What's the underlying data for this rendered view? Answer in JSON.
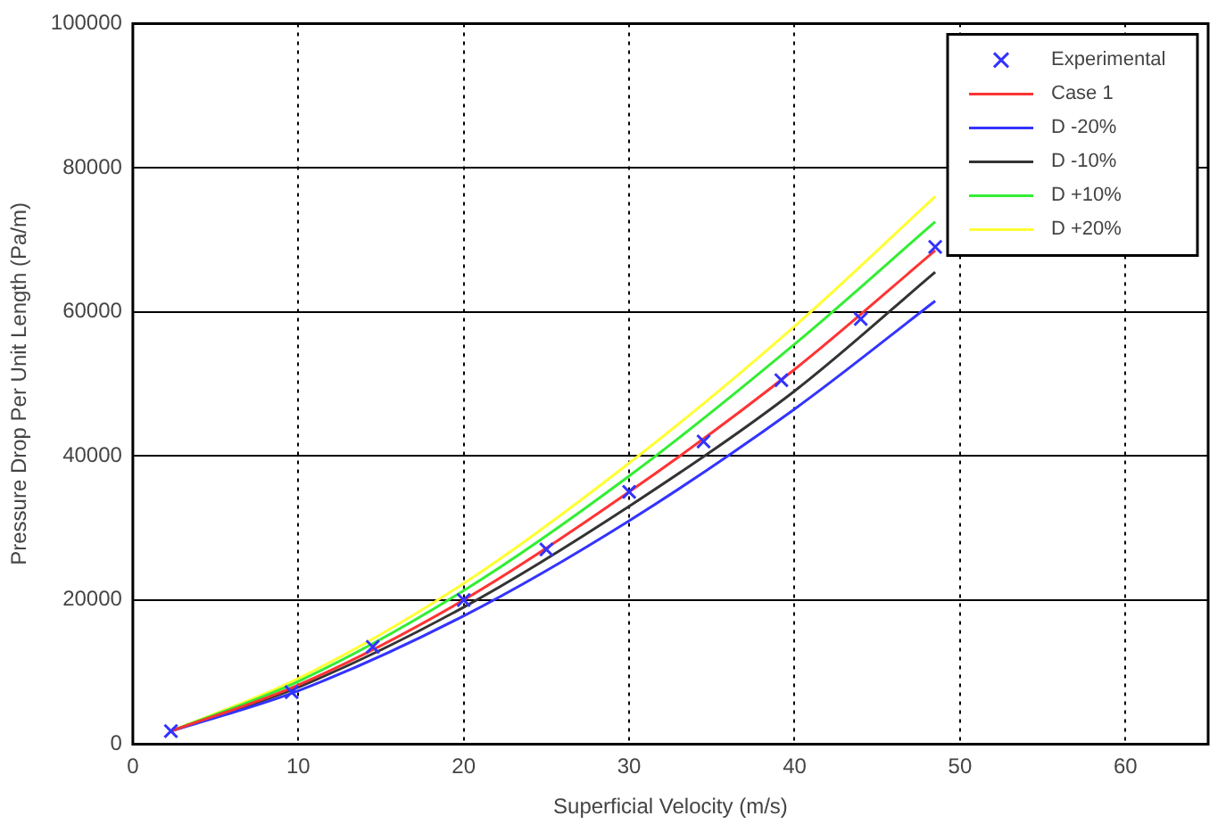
{
  "chart_data": {
    "type": "line",
    "xlabel": "Superficial Velocity (m/s)",
    "ylabel": "Pressure Drop Per Unit Length (Pa/m)",
    "xlim": [
      0,
      65
    ],
    "xticks": [
      0,
      10,
      20,
      30,
      40,
      50,
      60
    ],
    "ylim": [
      0,
      100000
    ],
    "yticks": [
      0,
      20000,
      40000,
      60000,
      80000,
      100000
    ],
    "grid": true,
    "legend": "top right",
    "line_style": "solid",
    "series": [
      {
        "name": "Experimental",
        "type": "scatter",
        "marker": "cross",
        "color": "#3333ff",
        "x": [
          2.3,
          9.6,
          14.5,
          20,
          25,
          30,
          34.5,
          39.2,
          44,
          48.5
        ],
        "values": [
          1800,
          7200,
          13500,
          20000,
          27000,
          35000,
          42000,
          50500,
          59000,
          69000
        ]
      },
      {
        "name": "Case 1",
        "color": "#ff3333",
        "marker": "none",
        "x": [
          2.3,
          10,
          20,
          30,
          40,
          48.5
        ],
        "values": [
          1800,
          8200,
          20000,
          35000,
          52000,
          68500
        ]
      },
      {
        "name": "D -20%",
        "color": "#3333ff",
        "marker": "none",
        "x": [
          2.3,
          10,
          20,
          30,
          40,
          48.5
        ],
        "values": [
          1800,
          7400,
          17800,
          31000,
          46500,
          61500
        ]
      },
      {
        "name": "D -10%",
        "color": "#333333",
        "marker": "none",
        "x": [
          2.3,
          10,
          20,
          30,
          40,
          48.5
        ],
        "values": [
          1800,
          7900,
          19000,
          33000,
          49000,
          65500
        ]
      },
      {
        "name": "D +10%",
        "color": "#33ee33",
        "marker": "none",
        "x": [
          2.3,
          10,
          20,
          30,
          40,
          48.5
        ],
        "values": [
          1800,
          8700,
          21300,
          37200,
          55500,
          72500
        ]
      },
      {
        "name": "D +20%",
        "color": "#ffff33",
        "marker": "none",
        "x": [
          2.3,
          10,
          20,
          30,
          40,
          48.5
        ],
        "values": [
          1800,
          9100,
          22300,
          39000,
          58000,
          76000
        ]
      }
    ]
  }
}
